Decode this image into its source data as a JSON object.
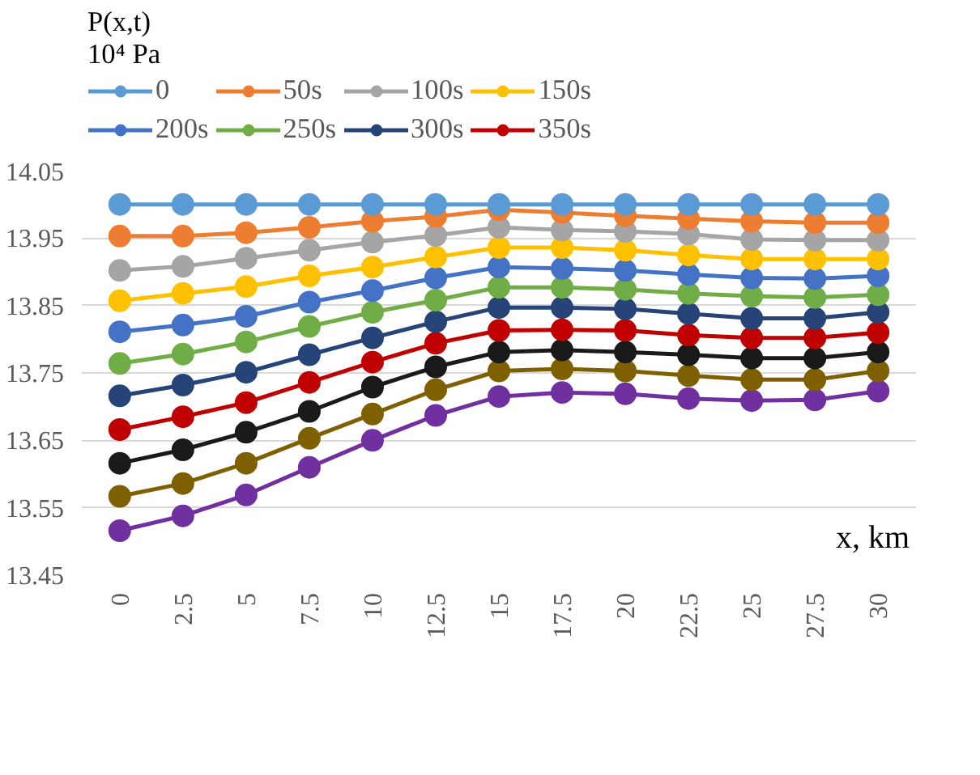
{
  "chart_data": {
    "type": "line",
    "legend_title": "P(x,t)\n10⁴ Pa",
    "xlabel": "x, km",
    "categories": [
      "0",
      "2.5",
      "5",
      "7.5",
      "10",
      "12.5",
      "15",
      "17.5",
      "20",
      "22.5",
      "25",
      "27.5",
      "30"
    ],
    "ylim": [
      13.45,
      14.05
    ],
    "yticks": [
      13.45,
      13.55,
      13.65,
      13.75,
      13.85,
      13.95,
      14.05
    ],
    "grid": "y",
    "legend": "top",
    "marker": "circle",
    "series": [
      {
        "name": "0",
        "color": "#5b9bd5",
        "values": [
          14.0,
          14.0,
          14.0,
          14.0,
          14.0,
          14.0,
          14.0,
          14.0,
          14.0,
          14.0,
          14.0,
          14.0,
          14.0
        ]
      },
      {
        "name": "50s",
        "color": "#ed7d31",
        "values": [
          13.953,
          13.953,
          13.958,
          13.966,
          13.975,
          13.982,
          13.992,
          13.988,
          13.983,
          13.979,
          13.975,
          13.973,
          13.973
        ]
      },
      {
        "name": "100s",
        "color": "#a5a5a5",
        "values": [
          13.902,
          13.908,
          13.92,
          13.932,
          13.944,
          13.954,
          13.966,
          13.962,
          13.96,
          13.956,
          13.948,
          13.947,
          13.947
        ]
      },
      {
        "name": "150s",
        "color": "#ffc000",
        "values": [
          13.857,
          13.868,
          13.878,
          13.894,
          13.907,
          13.922,
          13.936,
          13.936,
          13.932,
          13.925,
          13.919,
          13.919,
          13.919
        ]
      },
      {
        "name": "200s",
        "color": "#4472c4",
        "values": [
          13.811,
          13.821,
          13.834,
          13.855,
          13.872,
          13.891,
          13.907,
          13.905,
          13.902,
          13.896,
          13.891,
          13.89,
          13.894
        ]
      },
      {
        "name": "250s",
        "color": "#70ad47",
        "values": [
          13.764,
          13.778,
          13.796,
          13.819,
          13.84,
          13.858,
          13.877,
          13.877,
          13.874,
          13.868,
          13.864,
          13.862,
          13.866
        ]
      },
      {
        "name": "300s",
        "color": "#264478",
        "values": [
          13.716,
          13.732,
          13.751,
          13.777,
          13.802,
          13.826,
          13.847,
          13.847,
          13.845,
          13.838,
          13.831,
          13.831,
          13.84
        ]
      },
      {
        "name": "350s",
        "color": "#c00000",
        "values": [
          13.666,
          13.685,
          13.706,
          13.736,
          13.766,
          13.794,
          13.813,
          13.814,
          13.813,
          13.806,
          13.802,
          13.802,
          13.81
        ]
      },
      {
        "color": "#1a1a1a",
        "values": [
          13.616,
          13.636,
          13.662,
          13.693,
          13.729,
          13.759,
          13.781,
          13.784,
          13.781,
          13.777,
          13.772,
          13.772,
          13.781
        ]
      },
      {
        "color": "#7f6000",
        "values": [
          13.567,
          13.586,
          13.616,
          13.653,
          13.689,
          13.725,
          13.753,
          13.756,
          13.753,
          13.746,
          13.74,
          13.74,
          13.753
        ]
      },
      {
        "color": "#7030a0",
        "values": [
          13.516,
          13.538,
          13.569,
          13.61,
          13.65,
          13.687,
          13.715,
          13.721,
          13.719,
          13.712,
          13.709,
          13.71,
          13.723
        ]
      }
    ]
  }
}
